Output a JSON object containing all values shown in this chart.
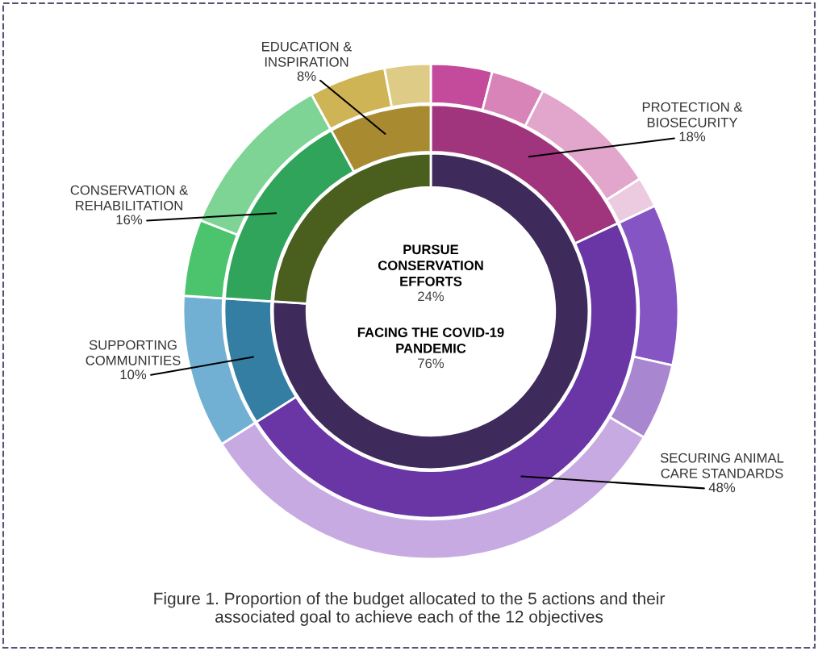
{
  "chart_data": {
    "type": "donut",
    "series": [
      {
        "values": [
          76,
          24
        ],
        "value_labels": [
          "76%",
          "24%"
        ],
        "colors": [
          "#3f2a5c",
          "#4a5e1e"
        ]
      },
      {
        "values": [
          18,
          48,
          10,
          16,
          8
        ],
        "value_labels": [
          "18%",
          "48%",
          "10%",
          "16%",
          "8%"
        ],
        "colors": [
          "#a0357e",
          "#6a35a5",
          "#347ea3",
          "#30a45a",
          "#a88a30"
        ]
      },
      {
        "values": [
          4,
          3.5,
          8.5,
          2,
          10.5,
          5,
          32.5,
          10,
          5,
          11,
          5,
          3
        ],
        "colors": [
          "#c44a9c",
          "#d884b8",
          "#e2a6cc",
          "#eccbe0",
          "#8655c4",
          "#a886d0",
          "#c8aae2",
          "#72b0d3",
          "#4cc46e",
          "#7dd495",
          "#cfb455",
          "#decb85"
        ]
      }
    ],
    "annotations": [
      "FACING THE COVID-19\nPANDEMIC",
      "PURSUE\nCONSERVATION\nEFFORTS",
      "PROTECTION &\nBIOSECURITY",
      "SECURING ANIMAL\nCARE STANDARDS",
      "SUPPORTING\nCOMMUNITIES",
      "CONSERVATION &\nREHABILITATION",
      "EDUCATION &\nINSPIRATION",
      "Figure 1. Proportion of the budget allocated to the 5 actions and their\nassociated goal to achieve each of the 12 objectives"
    ]
  }
}
